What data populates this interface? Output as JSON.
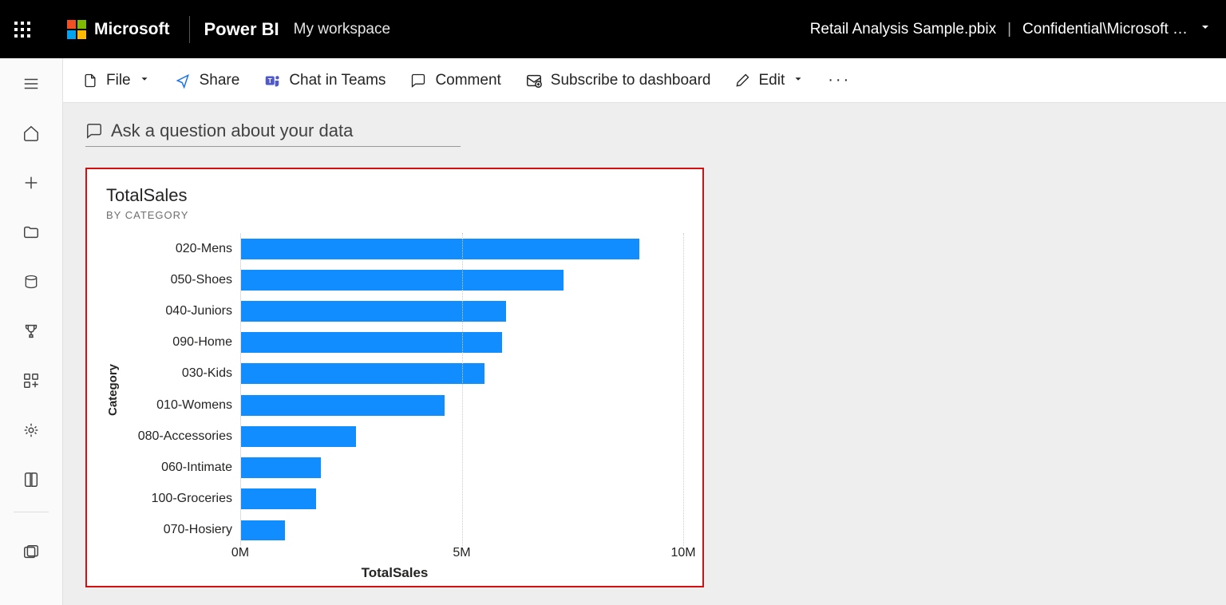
{
  "topbar": {
    "ms_label": "Microsoft",
    "product_label": "Power BI",
    "workspace_label": "My workspace",
    "file_name": "Retail Analysis Sample.pbix",
    "sensitivity": "Confidential\\Microsoft …"
  },
  "toolbar": {
    "file": "File",
    "share": "Share",
    "chat_in_teams": "Chat in Teams",
    "comment": "Comment",
    "subscribe": "Subscribe to dashboard",
    "edit": "Edit"
  },
  "ask": {
    "placeholder": "Ask a question about your data"
  },
  "chart": {
    "type": "bar-horizontal",
    "title": "TotalSales",
    "subtitle": "BY CATEGORY",
    "y_axis_title": "Category",
    "x_axis_title": "TotalSales",
    "bar_color": "#118dff",
    "background_color": "#ffffff",
    "grid_color": "#cccccc",
    "tile_border_color": "#d40f0f",
    "xlim": [
      0,
      10
    ],
    "x_ticks": [
      {
        "value": 0,
        "label": "0M"
      },
      {
        "value": 5,
        "label": "5M"
      },
      {
        "value": 10,
        "label": "10M"
      }
    ],
    "categories": [
      {
        "label": "020-Mens",
        "value": 9.0
      },
      {
        "label": "050-Shoes",
        "value": 7.3
      },
      {
        "label": "040-Juniors",
        "value": 6.0
      },
      {
        "label": "090-Home",
        "value": 5.9
      },
      {
        "label": "030-Kids",
        "value": 5.5
      },
      {
        "label": "010-Womens",
        "value": 4.6
      },
      {
        "label": "080-Accessories",
        "value": 2.6
      },
      {
        "label": "060-Intimate",
        "value": 1.8
      },
      {
        "label": "100-Groceries",
        "value": 1.7
      },
      {
        "label": "070-Hosiery",
        "value": 1.0
      }
    ],
    "label_fontsize": 16,
    "title_fontsize": 22
  }
}
